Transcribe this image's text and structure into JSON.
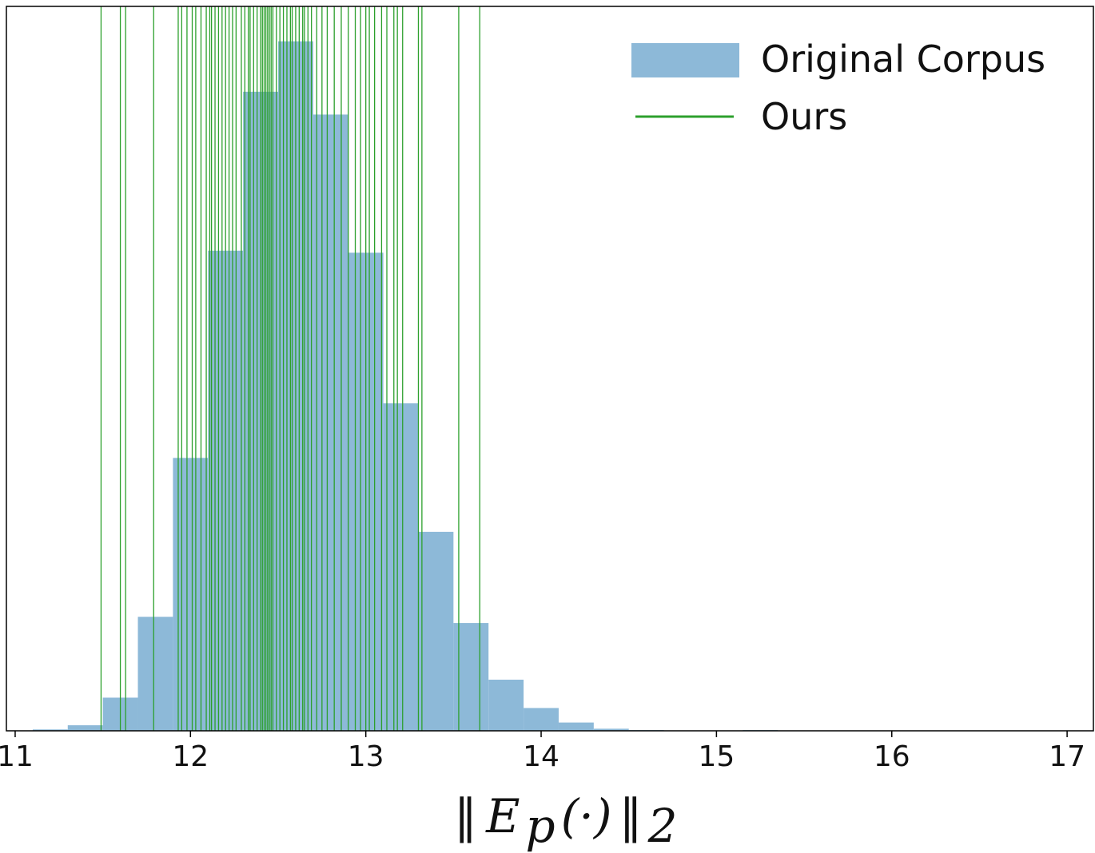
{
  "chart_data": {
    "type": "bar",
    "xlabel": "‖E_p(·)‖₂",
    "xlabel_parts": {
      "open": "‖",
      "var": "E",
      "sub": "p",
      "args": "(·)",
      "close": "‖",
      "norm_sub": "2"
    },
    "xlim": [
      10.95,
      17.15
    ],
    "xticks": [
      "11",
      "12",
      "13",
      "14",
      "15",
      "16",
      "17"
    ],
    "ylim": [
      0,
      1000
    ],
    "yaxis_ticks_shown": false,
    "grid": false,
    "legend_position": "top-right",
    "colors": {
      "histogram": "#8db9d8",
      "ours": "#2ca02c"
    },
    "series": [
      {
        "name": "Original Corpus",
        "kind": "histogram",
        "bins": [
          {
            "start": 11.1,
            "end": 11.3,
            "count": 2
          },
          {
            "start": 11.3,
            "end": 11.5,
            "count": 8
          },
          {
            "start": 11.5,
            "end": 11.7,
            "count": 48
          },
          {
            "start": 11.7,
            "end": 11.9,
            "count": 165
          },
          {
            "start": 11.9,
            "end": 12.1,
            "count": 395
          },
          {
            "start": 12.1,
            "end": 12.3,
            "count": 695
          },
          {
            "start": 12.3,
            "end": 12.5,
            "count": 925
          },
          {
            "start": 12.5,
            "end": 12.7,
            "count": 998
          },
          {
            "start": 12.7,
            "end": 12.9,
            "count": 892
          },
          {
            "start": 12.9,
            "end": 13.1,
            "count": 692
          },
          {
            "start": 13.1,
            "end": 13.3,
            "count": 474
          },
          {
            "start": 13.3,
            "end": 13.5,
            "count": 288
          },
          {
            "start": 13.5,
            "end": 13.7,
            "count": 156
          },
          {
            "start": 13.7,
            "end": 13.9,
            "count": 74
          },
          {
            "start": 13.9,
            "end": 14.1,
            "count": 33
          },
          {
            "start": 14.1,
            "end": 14.3,
            "count": 12
          },
          {
            "start": 14.3,
            "end": 14.5,
            "count": 3
          },
          {
            "start": 14.5,
            "end": 14.7,
            "count": 1
          },
          {
            "start": 15.15,
            "end": 15.35,
            "count": 1
          }
        ]
      },
      {
        "name": "Ours",
        "kind": "vlines",
        "values": [
          11.49,
          11.6,
          11.63,
          11.79,
          11.93,
          11.95,
          11.98,
          12.01,
          12.03,
          12.06,
          12.09,
          12.11,
          12.12,
          12.14,
          12.16,
          12.18,
          12.2,
          12.22,
          12.24,
          12.26,
          12.29,
          12.31,
          12.33,
          12.34,
          12.36,
          12.38,
          12.4,
          12.41,
          12.42,
          12.43,
          12.44,
          12.45,
          12.46,
          12.47,
          12.49,
          12.51,
          12.53,
          12.55,
          12.57,
          12.58,
          12.6,
          12.62,
          12.64,
          12.65,
          12.67,
          12.69,
          12.72,
          12.75,
          12.78,
          12.82,
          12.86,
          12.9,
          12.94,
          12.97,
          13.0,
          13.02,
          13.05,
          13.09,
          13.12,
          13.16,
          13.18,
          13.21,
          13.3,
          13.32,
          13.53,
          13.65
        ]
      }
    ]
  }
}
